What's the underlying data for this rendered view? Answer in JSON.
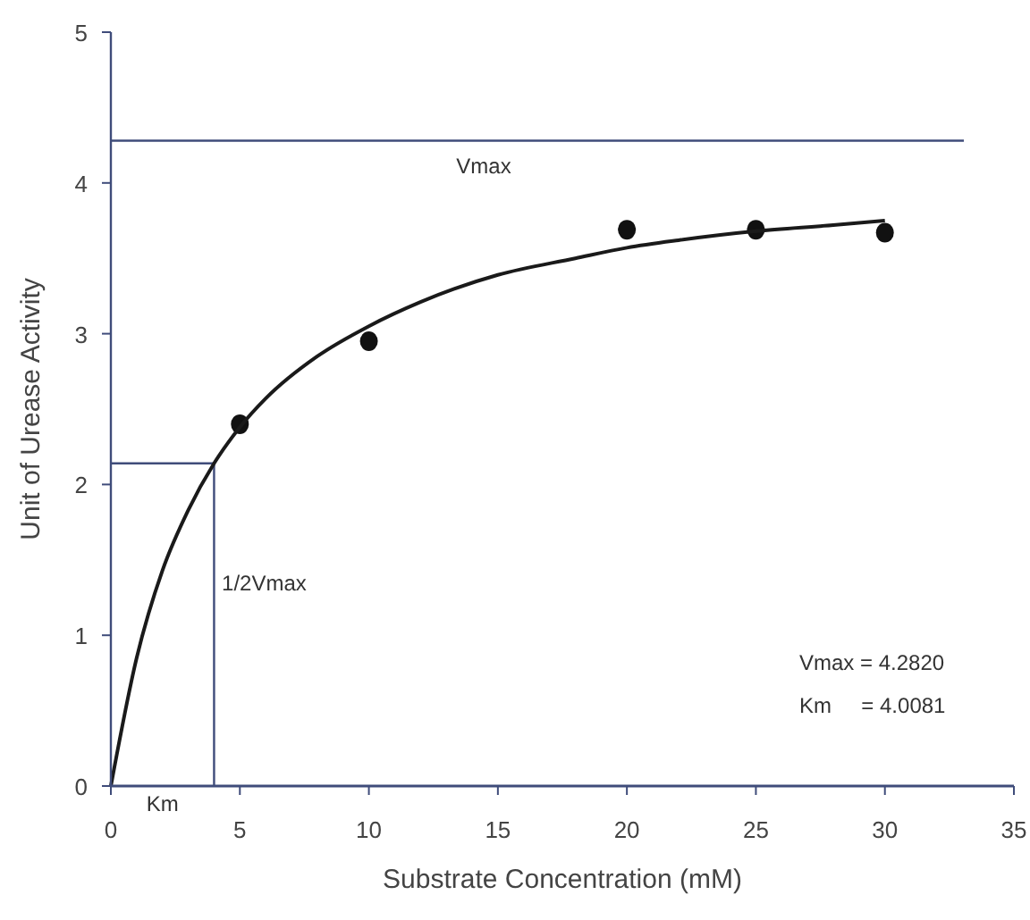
{
  "chart_data": {
    "type": "scatter",
    "xlabel": "Substrate Concentration (mM)",
    "ylabel": "Unit of Urease Activity",
    "xlim": [
      0,
      35
    ],
    "xticks": [
      0,
      5,
      10,
      15,
      20,
      25,
      30,
      35
    ],
    "ylim": [
      0,
      5
    ],
    "yticks": [
      0,
      1,
      2,
      3,
      4,
      5
    ],
    "grid": false,
    "marker": "circle",
    "series": [
      {
        "color": "#111111",
        "x": [
          5,
          10,
          20,
          25,
          30
        ],
        "values": [
          2.4,
          2.95,
          3.69,
          3.69,
          3.67
        ]
      },
      {
        "type": "line",
        "color": "#1a1a1a",
        "line_style": "solid",
        "marker": "none",
        "x": [
          0,
          1,
          2,
          3,
          4,
          5,
          6,
          8,
          10,
          12,
          15,
          18,
          20,
          22,
          25,
          28,
          30
        ],
        "values": [
          0,
          0.85,
          1.43,
          1.83,
          2.14,
          2.38,
          2.57,
          2.85,
          3.05,
          3.21,
          3.39,
          3.5,
          3.57,
          3.62,
          3.68,
          3.72,
          3.75
        ]
      }
    ],
    "ref_lines": [
      {
        "axis": "y",
        "value": 4.28,
        "label": "Vmax",
        "color": "#3f4c7a"
      },
      {
        "axis": "y",
        "value": 2.14,
        "color": "#3f4c7a"
      },
      {
        "axis": "x",
        "value": 4,
        "label": "Km",
        "color": "#3f4c7a"
      }
    ],
    "annotations": [
      {
        "text": "1/2Vmax",
        "x": 4.3,
        "y": 1.3
      },
      "Vmax = 4.2820",
      "Km     = 4.0081"
    ]
  }
}
